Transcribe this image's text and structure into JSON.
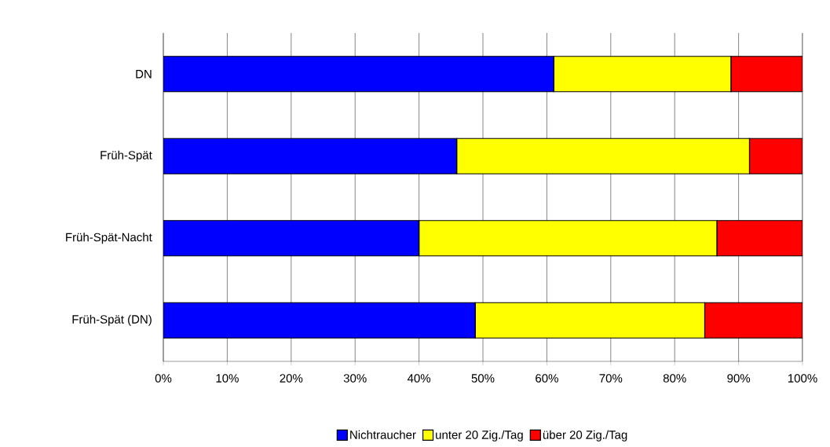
{
  "chart_data": {
    "type": "bar",
    "orientation": "horizontal",
    "stacked": true,
    "categories": [
      "DN",
      "Früh-Spät",
      "Früh-Spät-Nacht",
      "Früh-Spät (DN)"
    ],
    "series": [
      {
        "name": "Nichtraucher",
        "color": "#0000ff",
        "values": [
          61.1,
          45.9,
          40.0,
          48.8
        ]
      },
      {
        "name": "unter 20 Zig./Tag",
        "color": "#ffff00",
        "values": [
          27.7,
          45.8,
          46.6,
          35.9
        ]
      },
      {
        "name": "über 20 Zig./Tag",
        "color": "#ff0000",
        "values": [
          11.2,
          8.3,
          13.4,
          15.3
        ]
      }
    ],
    "xlim": [
      0,
      100
    ],
    "xticks": [
      {
        "value": 0,
        "label": "0%"
      },
      {
        "value": 10,
        "label": "10%"
      },
      {
        "value": 20,
        "label": "20%"
      },
      {
        "value": 30,
        "label": "30%"
      },
      {
        "value": 40,
        "label": "40%"
      },
      {
        "value": 50,
        "label": "50%"
      },
      {
        "value": 60,
        "label": "60%"
      },
      {
        "value": 70,
        "label": "70%"
      },
      {
        "value": 80,
        "label": "80%"
      },
      {
        "value": 90,
        "label": "90%"
      },
      {
        "value": 100,
        "label": "100%"
      }
    ],
    "grid": "x",
    "legend": "bottom"
  }
}
